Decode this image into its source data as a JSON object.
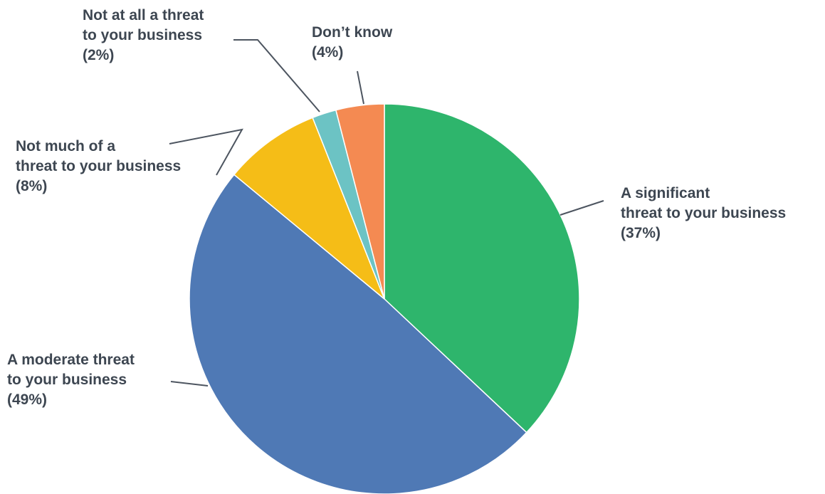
{
  "chart_data": {
    "type": "pie",
    "start_angle": "12 o'clock",
    "direction": "clockwise",
    "slices": [
      {
        "name": "A significant threat to your business",
        "value": 37,
        "color": "#2eb56c",
        "label_lines": [
          "A significant",
          "threat to your business",
          "(37%)"
        ]
      },
      {
        "name": "A moderate threat to your business",
        "value": 49,
        "color": "#4f79b5",
        "label_lines": [
          "A moderate threat",
          "to your business",
          "(49%)"
        ]
      },
      {
        "name": "Not much of a threat to your business",
        "value": 8,
        "color": "#f5bd17",
        "label_lines": [
          "Not much of a",
          "threat to your business",
          "(8%)"
        ]
      },
      {
        "name": "Not at all a threat to your business",
        "value": 2,
        "color": "#6cc3c4",
        "label_lines": [
          "Not at all a threat",
          "to your business",
          "(2%)"
        ]
      },
      {
        "name": "Don’t know",
        "value": 4,
        "color": "#f48a52",
        "label_lines": [
          "Don’t know",
          "(4%)"
        ]
      }
    ]
  }
}
